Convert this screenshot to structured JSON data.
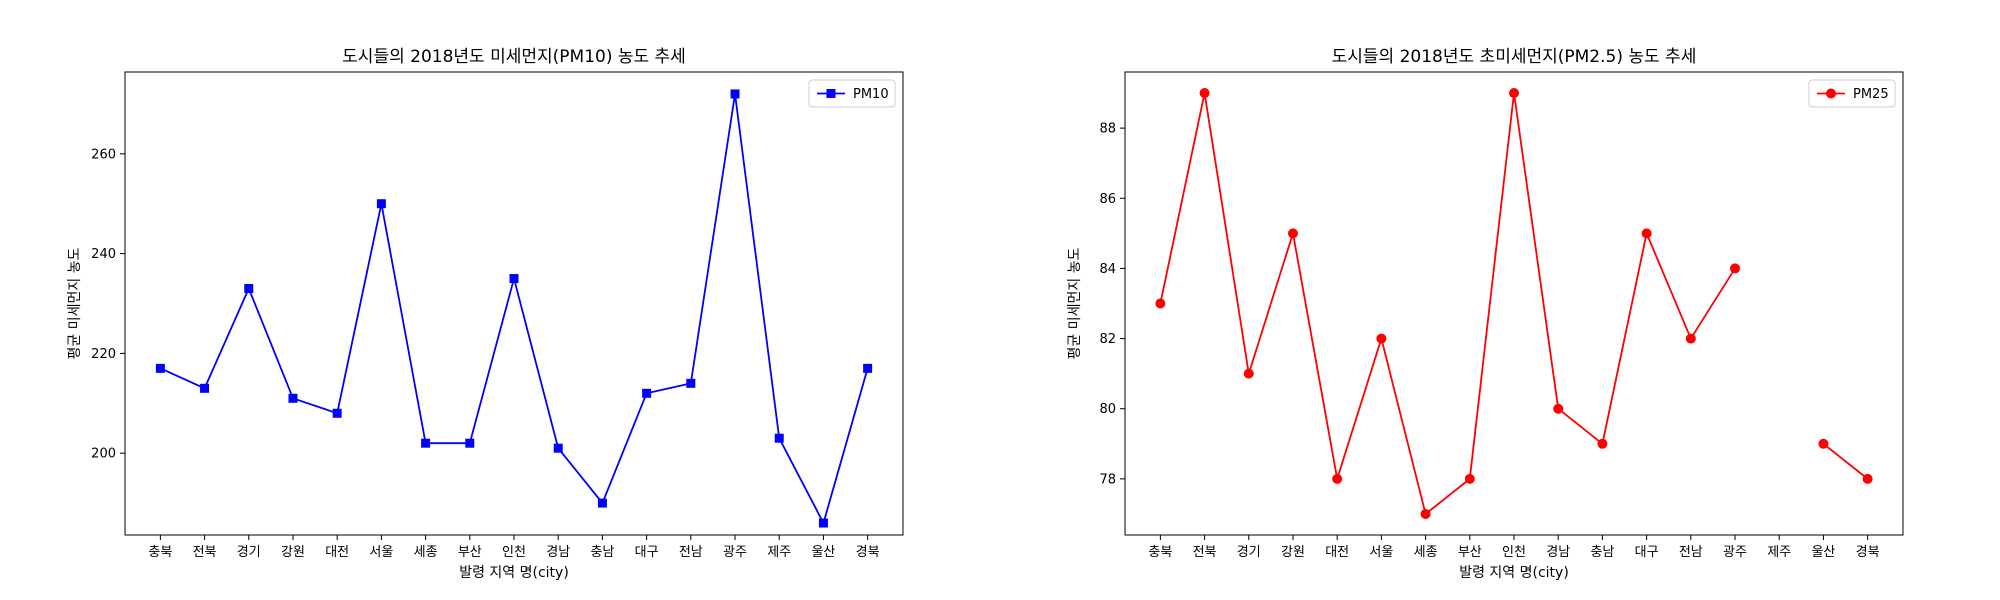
{
  "chart_data": [
    {
      "type": "line",
      "title": "도시들의 2018년도 미세먼지(PM10) 농도 추세",
      "xlabel": "발령 지역 명(city)",
      "ylabel": "평균 미세먼지 농도",
      "categories": [
        "충북",
        "전북",
        "경기",
        "강원",
        "대전",
        "서울",
        "세종",
        "부산",
        "인천",
        "경남",
        "충남",
        "대구",
        "전남",
        "광주",
        "제주",
        "울산",
        "경북"
      ],
      "series": [
        {
          "name": "PM10",
          "color": "#0000ff",
          "marker": "square",
          "values": [
            217,
            213,
            233,
            211,
            208,
            250,
            202,
            202,
            235,
            201,
            190,
            212,
            214,
            272,
            203,
            186,
            217
          ]
        }
      ],
      "ylim": [
        183.6,
        276.4
      ],
      "yticks": [
        200,
        220,
        240,
        260
      ],
      "grid": false,
      "legend": "top-right"
    },
    {
      "type": "line",
      "title": "도시들의 2018년도 초미세먼지(PM2.5) 농도 추세",
      "xlabel": "발령 지역 명(city)",
      "ylabel": "평균 미세먼지 농도",
      "categories": [
        "충북",
        "전북",
        "경기",
        "강원",
        "대전",
        "서울",
        "세종",
        "부산",
        "인천",
        "경남",
        "충남",
        "대구",
        "전남",
        "광주",
        "제주",
        "울산",
        "경북"
      ],
      "series": [
        {
          "name": "PM25",
          "color": "#ff0000",
          "marker": "circle",
          "values": [
            83,
            89,
            81,
            85,
            78,
            82,
            77,
            78,
            89,
            80,
            79,
            85,
            82,
            84,
            null,
            79,
            78
          ]
        }
      ],
      "ylim": [
        76.4,
        89.6
      ],
      "yticks": [
        78,
        80,
        82,
        84,
        86,
        88
      ],
      "grid": false,
      "legend": "top-right"
    }
  ]
}
